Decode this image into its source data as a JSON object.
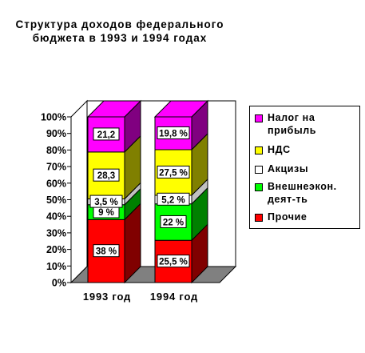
{
  "chart_data": {
    "type": "bar",
    "stacked": true,
    "three_d": true,
    "title_lines": [
      "Структура доходов федерального",
      "бюджета в 1993 и 1994 годах"
    ],
    "categories": [
      "1993 год",
      "1994 год"
    ],
    "y_ticks": [
      "0%",
      "10%",
      "20%",
      "30%",
      "40%",
      "50%",
      "60%",
      "70%",
      "80%",
      "90%",
      "100%"
    ],
    "ylim": [
      0,
      100
    ],
    "series": [
      {
        "name": "Прочие",
        "color": "#ff0000",
        "side_color": "#800000",
        "values": [
          38,
          25.5
        ],
        "labels": [
          "38 %",
          "25,5 %"
        ]
      },
      {
        "name": "Внешнеэкон. деят-ть",
        "color": "#00ff00",
        "side_color": "#008000",
        "values": [
          9,
          22
        ],
        "labels": [
          "9 %",
          "22 %"
        ]
      },
      {
        "name": "Акцизы",
        "color": "#ffffff",
        "side_color": "#c0c0c0",
        "values": [
          3.5,
          5.2
        ],
        "labels": [
          "3,5 %",
          "5,2 %"
        ]
      },
      {
        "name": "НДС",
        "color": "#ffff00",
        "side_color": "#808000",
        "values": [
          28.3,
          27.5
        ],
        "labels": [
          "28,3",
          "27,5 %"
        ]
      },
      {
        "name": "Налог на прибыль",
        "color": "#ff00ff",
        "side_color": "#800080",
        "values": [
          21.2,
          19.8
        ],
        "labels": [
          "21,2",
          "19,8 %"
        ]
      }
    ],
    "legend": {
      "position": "right",
      "items": [
        {
          "lines": [
            "Налог на",
            "прибыль"
          ],
          "color": "#ff00ff"
        },
        {
          "lines": [
            "НДС"
          ],
          "color": "#ffff00"
        },
        {
          "lines": [
            "Акцизы"
          ],
          "color": "#ffffff"
        },
        {
          "lines": [
            "Внешнеэкон.",
            "деят-ть"
          ],
          "color": "#00ff00"
        },
        {
          "lines": [
            "Прочие"
          ],
          "color": "#ff0000"
        }
      ]
    },
    "grid": false
  }
}
